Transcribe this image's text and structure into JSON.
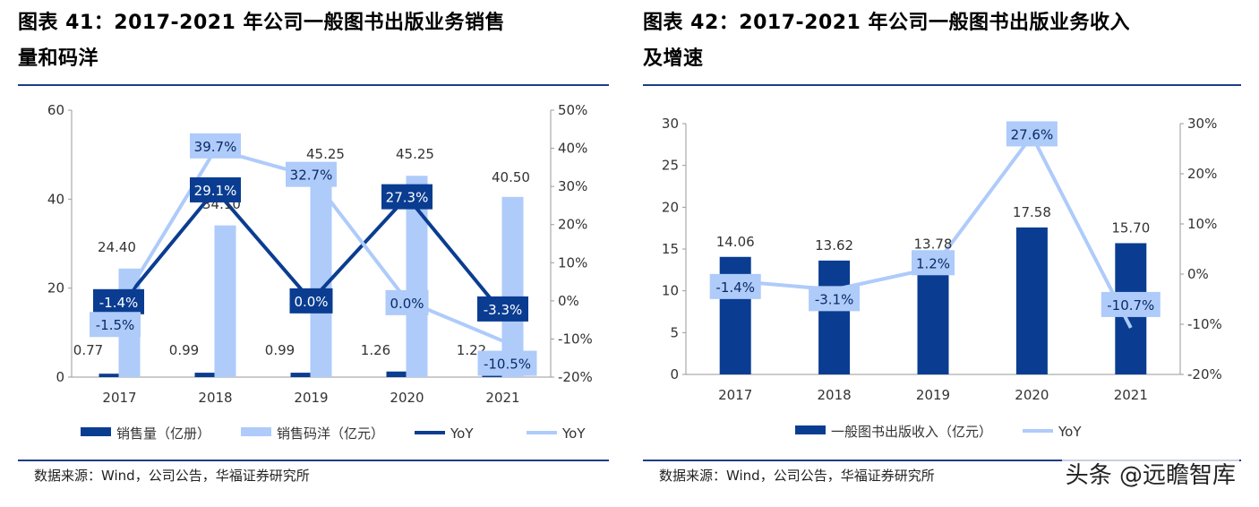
{
  "left": {
    "title_line1": "图表 41：2017-2021 年公司一般图书出版业务销售",
    "title_line2": "量和码洋",
    "source": "数据来源：Wind，公司公告，华福证券研究所"
  },
  "right": {
    "title_line1": "图表 42：2017-2021 年公司一般图书出版业务收入",
    "title_line2": "及增速",
    "source": "数据来源：Wind，公司公告，华福证券研究所"
  },
  "watermark": "头条 @远瞻智库",
  "colors": {
    "dark": "#0a3d91",
    "light": "#aecbfa",
    "rule": "#1f3c88"
  },
  "chart_data": [
    {
      "type": "bar",
      "categories": [
        "2017",
        "2018",
        "2019",
        "2020",
        "2021"
      ],
      "y_left": {
        "lim": [
          0,
          60
        ],
        "ticks": [
          "0",
          "20",
          "40",
          "60"
        ]
      },
      "y_right": {
        "lim": [
          -20,
          50
        ],
        "ticks": [
          "-20%",
          "-10%",
          "0%",
          "10%",
          "20%",
          "30%",
          "40%",
          "50%"
        ]
      },
      "series": [
        {
          "name": "销售量（亿册）",
          "kind": "bar",
          "axis": "left",
          "color": "#0a3d91",
          "values": [
            0.77,
            0.99,
            0.99,
            1.26,
            1.22
          ],
          "labels": [
            "0.77",
            "0.99",
            "0.99",
            "1.26",
            "1.22"
          ]
        },
        {
          "name": "销售码洋（亿元）",
          "kind": "bar",
          "axis": "left",
          "color": "#aecbfa",
          "values": [
            24.4,
            34.1,
            45.25,
            45.25,
            40.5
          ],
          "labels": [
            "24.40",
            "34.10",
            "45.25",
            "45.25",
            "40.50"
          ]
        },
        {
          "name": "YoY",
          "kind": "line",
          "axis": "right",
          "color": "#0a3d91",
          "values": [
            -1.4,
            29.1,
            0.0,
            27.3,
            -3.3
          ],
          "labels": [
            "-1.4%",
            "29.1%",
            "0.0%",
            "27.3%",
            "-3.3%"
          ]
        },
        {
          "name": "YoY",
          "kind": "line",
          "axis": "right",
          "color": "#aecbfa",
          "values": [
            -1.5,
            39.7,
            32.7,
            0.0,
            -10.5
          ],
          "labels": [
            "-1.5%",
            "39.7%",
            "32.7%",
            "0.0%",
            "-10.5%"
          ]
        }
      ]
    },
    {
      "type": "bar",
      "categories": [
        "2017",
        "2018",
        "2019",
        "2020",
        "2021"
      ],
      "y_left": {
        "lim": [
          0,
          30
        ],
        "ticks": [
          "0",
          "5",
          "10",
          "15",
          "20",
          "25",
          "30"
        ]
      },
      "y_right": {
        "lim": [
          -20,
          30
        ],
        "ticks": [
          "-20%",
          "-10%",
          "0%",
          "10%",
          "20%",
          "30%"
        ]
      },
      "series": [
        {
          "name": "一般图书出版收入（亿元）",
          "kind": "bar",
          "axis": "left",
          "color": "#0a3d91",
          "values": [
            14.06,
            13.62,
            13.78,
            17.58,
            15.7
          ],
          "labels": [
            "14.06",
            "13.62",
            "13.78",
            "17.58",
            "15.70"
          ]
        },
        {
          "name": "YoY",
          "kind": "line",
          "axis": "right",
          "color": "#aecbfa",
          "values": [
            -1.4,
            -3.1,
            1.2,
            27.6,
            -10.7
          ],
          "labels": [
            "-1.4%",
            "-3.1%",
            "1.2%",
            "27.6%",
            "-10.7%"
          ]
        }
      ]
    }
  ]
}
